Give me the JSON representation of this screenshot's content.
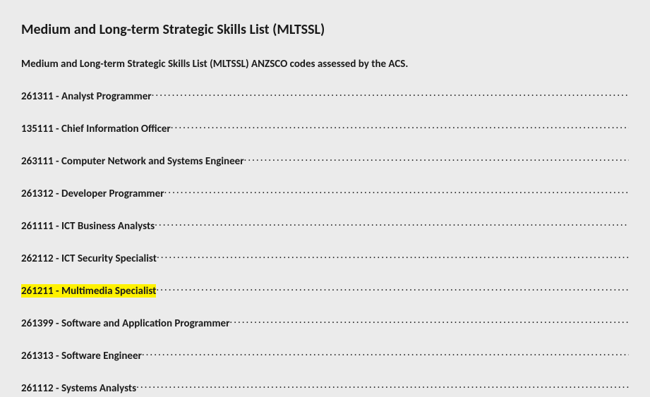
{
  "title": "Medium and Long-term Strategic Skills List (MLTSSL)",
  "subtitle": "Medium and Long-term Strategic Skills List (MLTSSL) ANZSCO codes assessed by the ACS.",
  "highlighted_index": 6,
  "highlight_color": "#fff200",
  "background_color": "#ebebeb",
  "text_color": "#1a1a1a",
  "font_family": "Calibri",
  "title_fontsize": 20,
  "body_fontsize": 15,
  "entries": [
    {
      "code": "261311",
      "name": "Analyst Programmer"
    },
    {
      "code": "135111",
      "name": "Chief Information Officer"
    },
    {
      "code": "263111",
      "name": "Computer Network and Systems Engineer"
    },
    {
      "code": "261312",
      "name": "Developer Programmer"
    },
    {
      "code": "261111",
      "name": "ICT Business Analysts"
    },
    {
      "code": "262112",
      "name": "ICT Security Specialist"
    },
    {
      "code": "261211",
      "name": "Multimedia Specialist"
    },
    {
      "code": "261399",
      "name": "Software and Application Programmer"
    },
    {
      "code": "261313",
      "name": "Software Engineer"
    },
    {
      "code": "261112",
      "name": "Systems Analysts"
    }
  ]
}
